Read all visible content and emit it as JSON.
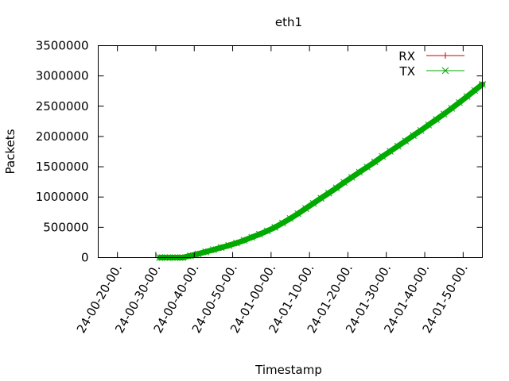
{
  "chart_data": {
    "type": "line",
    "title": "eth1",
    "xlabel": "Timestamp",
    "ylabel": "Packets",
    "x_tick_labels": [
      "24-00-20-00.",
      "24-00-30-00.",
      "24-00-40-00.",
      "24-00-50-00.",
      "24-01-00-00.",
      "24-01-10-00.",
      "24-01-20-00.",
      "24-01-30-00.",
      "24-01-40-00.",
      "24-01-50-00."
    ],
    "x_minutes_range": [
      0,
      100
    ],
    "ylim": [
      0,
      3500000
    ],
    "y_ticks": [
      0,
      500000,
      1000000,
      1500000,
      2000000,
      2500000,
      3000000,
      3500000
    ],
    "y_tick_labels": [
      "0",
      "500000",
      "1000000",
      "1500000",
      "2000000",
      "2500000",
      "3000000",
      "3500000"
    ],
    "grid": false,
    "legend_position": "top-right",
    "x": [
      16,
      18,
      20,
      22,
      24,
      26,
      28,
      30,
      32,
      34,
      36,
      38,
      40,
      42,
      44,
      46,
      48,
      50,
      52,
      54,
      56,
      58,
      60,
      62,
      64,
      66,
      68,
      70,
      72,
      74,
      76,
      78,
      80,
      82,
      84,
      86,
      88,
      90,
      92,
      94,
      96,
      98,
      100
    ],
    "series": [
      {
        "name": "RX",
        "color": "#cc0000",
        "marker": "plus",
        "values": [
          0,
          0,
          0,
          0,
          30000,
          60000,
          95000,
          130000,
          165000,
          200000,
          240000,
          285000,
          335000,
          385000,
          440000,
          500000,
          570000,
          645000,
          725000,
          810000,
          895000,
          980000,
          1065000,
          1150000,
          1240000,
          1325000,
          1410000,
          1495000,
          1580000,
          1670000,
          1755000,
          1840000,
          1925000,
          2015000,
          2100000,
          2190000,
          2280000,
          2370000,
          2465000,
          2560000,
          2660000,
          2760000,
          2890000
        ]
      },
      {
        "name": "TX",
        "color": "#00aa00",
        "marker": "cross",
        "values": [
          0,
          0,
          0,
          0,
          30000,
          60000,
          95000,
          130000,
          165000,
          200000,
          240000,
          285000,
          335000,
          385000,
          440000,
          500000,
          570000,
          645000,
          725000,
          810000,
          895000,
          980000,
          1065000,
          1150000,
          1240000,
          1325000,
          1410000,
          1495000,
          1580000,
          1670000,
          1755000,
          1840000,
          1925000,
          2015000,
          2100000,
          2190000,
          2280000,
          2370000,
          2465000,
          2560000,
          2660000,
          2760000,
          2860000
        ]
      }
    ]
  }
}
